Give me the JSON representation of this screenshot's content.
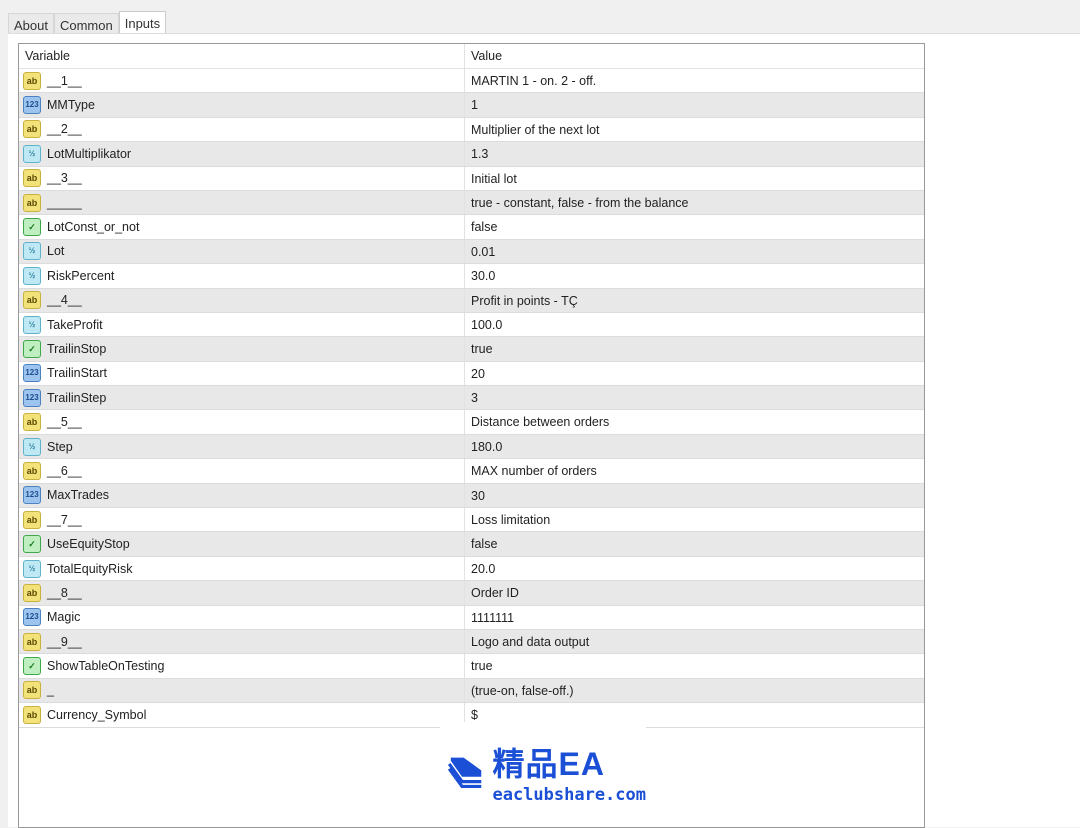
{
  "tabs": [
    "About",
    "Common",
    "Inputs"
  ],
  "active_tab": "Inputs",
  "table": {
    "headers": {
      "variable": "Variable",
      "value": "Value"
    },
    "rows": [
      {
        "type": "string",
        "variable": "__1__",
        "value": "MARTIN 1 - on. 2 - off."
      },
      {
        "type": "int",
        "variable": "MMType",
        "value": "1"
      },
      {
        "type": "string",
        "variable": "__2__",
        "value": "Multiplier of the next lot"
      },
      {
        "type": "double",
        "variable": "LotMultiplikator",
        "value": "1.3"
      },
      {
        "type": "string",
        "variable": "__3__",
        "value": "Initial lot"
      },
      {
        "type": "string",
        "variable": "_____",
        "value": "true - constant, false - from the balance"
      },
      {
        "type": "bool",
        "variable": "LotConst_or_not",
        "value": "false"
      },
      {
        "type": "double",
        "variable": "Lot",
        "value": "0.01"
      },
      {
        "type": "double",
        "variable": "RiskPercent",
        "value": "30.0"
      },
      {
        "type": "string",
        "variable": "__4__",
        "value": "Profit in points - TÇ"
      },
      {
        "type": "double",
        "variable": "TakeProfit",
        "value": "100.0"
      },
      {
        "type": "bool",
        "variable": "TrailinStop",
        "value": "true"
      },
      {
        "type": "int",
        "variable": "TrailinStart",
        "value": "20"
      },
      {
        "type": "int",
        "variable": "TrailinStep",
        "value": "3"
      },
      {
        "type": "string",
        "variable": "__5__",
        "value": "Distance between orders"
      },
      {
        "type": "double",
        "variable": "Step",
        "value": "180.0"
      },
      {
        "type": "string",
        "variable": "__6__",
        "value": "MAX number of orders"
      },
      {
        "type": "int",
        "variable": "MaxTrades",
        "value": "30"
      },
      {
        "type": "string",
        "variable": "__7__",
        "value": "Loss limitation"
      },
      {
        "type": "bool",
        "variable": "UseEquityStop",
        "value": "false"
      },
      {
        "type": "double",
        "variable": "TotalEquityRisk",
        "value": "20.0"
      },
      {
        "type": "string",
        "variable": "__8__",
        "value": "Order ID"
      },
      {
        "type": "int",
        "variable": "Magic",
        "value": "1111111"
      },
      {
        "type": "string",
        "variable": "__9__",
        "value": "Logo and data output"
      },
      {
        "type": "bool",
        "variable": "ShowTableOnTesting",
        "value": "true"
      },
      {
        "type": "string",
        "variable": "_",
        "value": "(true-on, false-off.)"
      },
      {
        "type": "string",
        "variable": "Currency_Symbol",
        "value": "$"
      }
    ]
  },
  "icons": {
    "string": "ab",
    "int": "123",
    "double": "½",
    "bool": "✓"
  },
  "watermark": {
    "title": "精品EA",
    "url": "eaclubshare.com",
    "color": "#1a4fd6"
  }
}
